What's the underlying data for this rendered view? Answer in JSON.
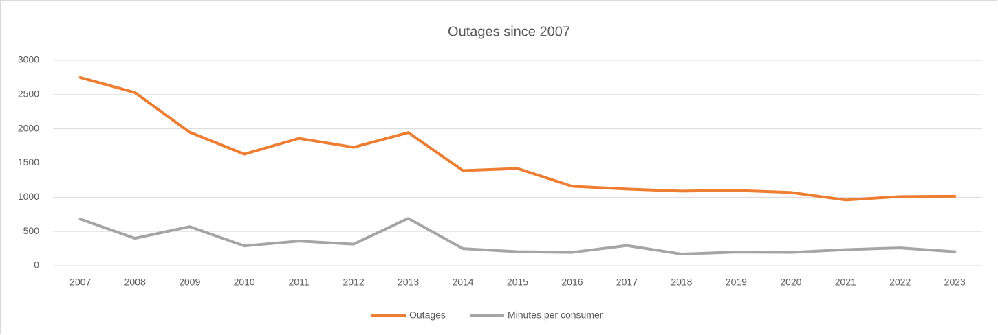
{
  "chart_data": {
    "type": "line",
    "title": "Outages since 2007",
    "categories": [
      "2007",
      "2008",
      "2009",
      "2010",
      "2011",
      "2012",
      "2013",
      "2014",
      "2015",
      "2016",
      "2017",
      "2018",
      "2019",
      "2020",
      "2021",
      "2022",
      "2023"
    ],
    "series": [
      {
        "name": "Outages",
        "color": "#ed7d31",
        "values": [
          2750,
          2530,
          1950,
          1630,
          1860,
          1730,
          1945,
          1390,
          1420,
          1160,
          1120,
          1090,
          1100,
          1070,
          960,
          1010,
          1015
        ]
      },
      {
        "name": "Minutes per consumer",
        "color": "#a5a5a5",
        "values": [
          680,
          400,
          570,
          290,
          360,
          315,
          690,
          250,
          205,
          195,
          295,
          170,
          200,
          195,
          235,
          260,
          205
        ]
      }
    ],
    "ylim": [
      0,
      3000
    ],
    "yticks": [
      0,
      500,
      1000,
      1500,
      2000,
      2500,
      3000
    ],
    "grid": true,
    "legend": "bottom"
  }
}
